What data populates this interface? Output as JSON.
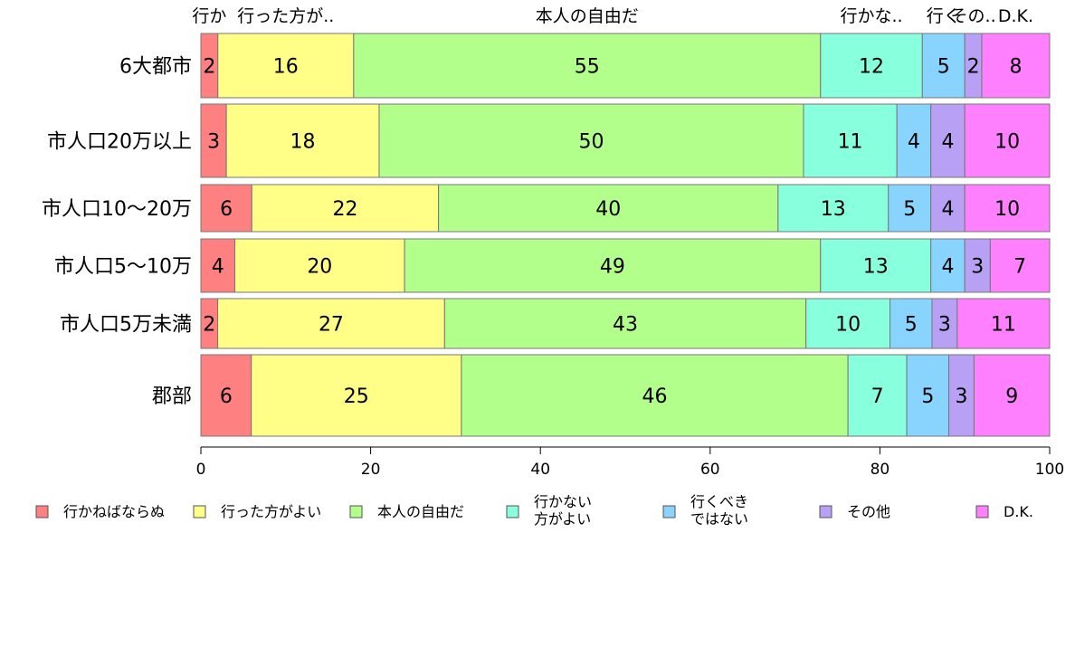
{
  "chart_data": {
    "type": "bar",
    "orientation": "horizontal",
    "stacked": true,
    "categories": [
      "6大都市",
      "市人口20万以上",
      "市人口10〜20万",
      "市人口5〜10万",
      "市人口5万未満",
      "郡部"
    ],
    "series": [
      {
        "name": "行かねばならぬ",
        "color": "#ff8080",
        "values": [
          2,
          3,
          6,
          4,
          2,
          6
        ]
      },
      {
        "name": "行った方がよい",
        "color": "#ffff88",
        "values": [
          16,
          18,
          22,
          20,
          27,
          25
        ]
      },
      {
        "name": "本人の自由だ",
        "color": "#b3ff8c",
        "values": [
          55,
          50,
          40,
          49,
          43,
          46
        ]
      },
      {
        "name": "行かない方がよい",
        "legend_lines": [
          "行かない",
          "方がよい"
        ],
        "color": "#88ffdd",
        "values": [
          12,
          11,
          13,
          13,
          10,
          7
        ]
      },
      {
        "name": "行くべきではない",
        "legend_lines": [
          "行くべき",
          "ではない"
        ],
        "color": "#88d4ff",
        "values": [
          5,
          4,
          5,
          4,
          5,
          5
        ]
      },
      {
        "name": "その他",
        "color": "#b8a0f5",
        "values": [
          2,
          4,
          4,
          3,
          3,
          3
        ]
      },
      {
        "name": "D.K.",
        "color": "#ff80ff",
        "values": [
          8,
          10,
          10,
          7,
          11,
          9
        ]
      }
    ],
    "top_labels": [
      {
        "text": "行か",
        "center": 1.0
      },
      {
        "text": "行った方が..",
        "center": 10.0
      },
      {
        "text": "本人の自由だ",
        "center": 45.5
      },
      {
        "text": "行かな..",
        "center": 79.0
      },
      {
        "text": "行く",
        "center": 87.5
      },
      {
        "text": "その..",
        "center": 91.0
      },
      {
        "text": "D.K.",
        "center": 96.0
      }
    ],
    "xlim": [
      0,
      100
    ],
    "xticks": [
      0,
      20,
      40,
      60,
      80,
      100
    ],
    "xlabel": "",
    "ylabel": "",
    "title": "",
    "grid": false,
    "legend_position": "bottom"
  }
}
